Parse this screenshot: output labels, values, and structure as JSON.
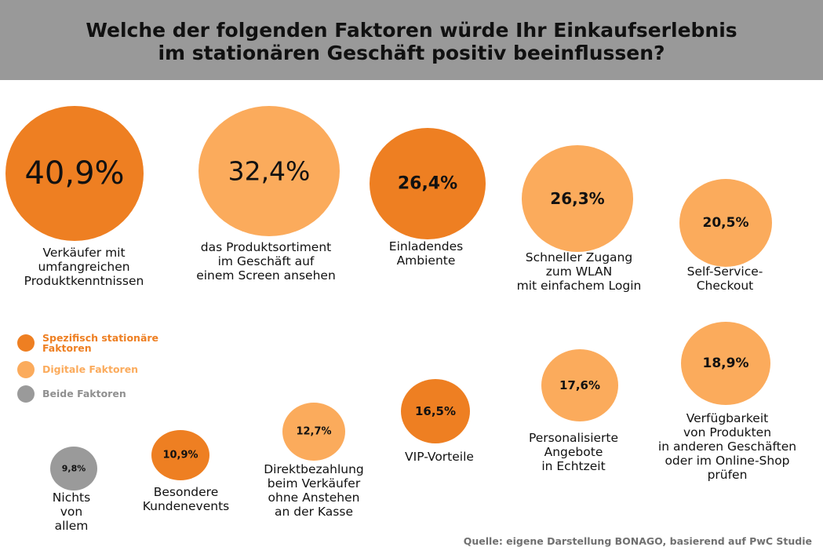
{
  "title": {
    "line1": "Welche der folgenden Faktoren würde Ihr Einkaufserlebnis",
    "line2": "im stationären Geschäft positiv beeinflussen?"
  },
  "colors": {
    "stationary": "#ee7f22",
    "digital": "#fbab5c",
    "both": "#9a9a9a",
    "header": "#999999"
  },
  "legend": [
    {
      "label": "Spezifisch stationäre Faktoren",
      "group": "stationary",
      "text_color": "#ee7f22"
    },
    {
      "label": "Digitale Faktoren",
      "group": "digital",
      "text_color": "#fbab5c"
    },
    {
      "label": "Beide Faktoren",
      "group": "both",
      "text_color": "#909090"
    }
  ],
  "chart_data": {
    "type": "bubble",
    "unit": "%",
    "items": [
      {
        "label": "Verkäufer mit\numfangreichen\nProduktkenntnissen",
        "value": 40.9,
        "display": "40,9%",
        "group": "stationary"
      },
      {
        "label": "das Produktsortiment\nim Geschäft auf\neinem Screen ansehen",
        "value": 32.4,
        "display": "32,4%",
        "group": "digital"
      },
      {
        "label": "Einladendes\nAmbiente",
        "value": 26.4,
        "display": "26,4%",
        "group": "stationary"
      },
      {
        "label": "Schneller Zugang\nzum WLAN\nmit einfachem Login",
        "value": 26.3,
        "display": "26,3%",
        "group": "digital"
      },
      {
        "label": "Self-Service-\nCheckout",
        "value": 20.5,
        "display": "20,5%",
        "group": "digital"
      },
      {
        "label": "Verfügbarkeit\nvon Produkten\nin anderen Geschäften\noder im Online-Shop\nprüfen",
        "value": 18.9,
        "display": "18,9%",
        "group": "digital"
      },
      {
        "label": "Personalisierte\nAngebote\nin Echtzeit",
        "value": 17.6,
        "display": "17,6%",
        "group": "digital"
      },
      {
        "label": "VIP-Vorteile",
        "value": 16.5,
        "display": "16,5%",
        "group": "stationary"
      },
      {
        "label": "Direktbezahlung\nbeim Verkäufer\nohne Anstehen\nan der Kasse",
        "value": 12.7,
        "display": "12,7%",
        "group": "digital"
      },
      {
        "label": "Besondere\nKundenevents",
        "value": 10.9,
        "display": "10,9%",
        "group": "stationary"
      },
      {
        "label": "Nichts\nvon\nallem",
        "value": 9.8,
        "display": "9,8%",
        "group": "both"
      }
    ]
  },
  "source": "Quelle: eigene Darstellung BONAGO, basierend auf PwC Studie"
}
